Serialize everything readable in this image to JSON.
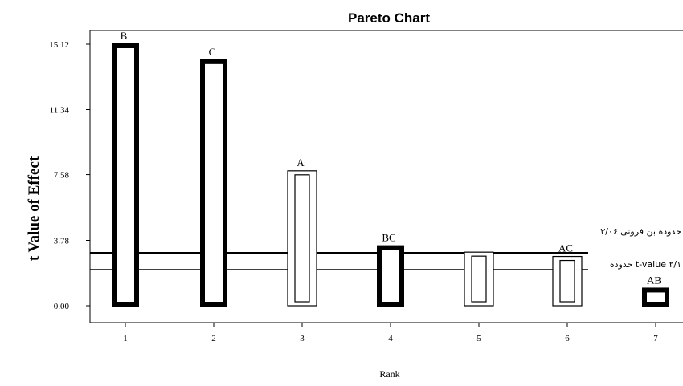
{
  "chart_data": {
    "type": "bar",
    "title": "Pareto Chart",
    "xlabel": "Rank",
    "ylabel": "t Value of Effect",
    "ylim": [
      0,
      15.12
    ],
    "yticks": [
      "0.00",
      "3.78",
      "7.58",
      "11.34",
      "15.12"
    ],
    "categories": [
      "1",
      "2",
      "3",
      "4",
      "5",
      "6",
      "7"
    ],
    "values": [
      15.12,
      14.2,
      7.8,
      3.45,
      3.1,
      2.85,
      1.0
    ],
    "bar_labels": [
      "B",
      "C",
      "A",
      "BC",
      "",
      "AC",
      "AB"
    ],
    "bar_styles": [
      "positive",
      "positive",
      "negative",
      "positive",
      "negative",
      "negative",
      "positive"
    ],
    "reference_lines": [
      {
        "value": 3.06,
        "label": "حدوده بن فرونی ۳/۰۶"
      },
      {
        "value": 2.1,
        "label": "حدوده t-value ۲/۱"
      }
    ],
    "grid": false,
    "legend": "none"
  }
}
